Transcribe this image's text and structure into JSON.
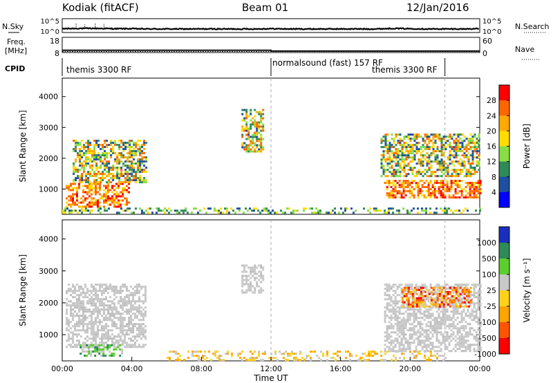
{
  "header": {
    "station": "Kodiak (fitACF)",
    "beam": "Beam 01",
    "date": "12/Jan/2016"
  },
  "chart_data": [
    {
      "type": "line",
      "name": "noise-panel",
      "ylabel_left": "N.Sky",
      "ylabel_right": "N.Search",
      "yticks_left": [
        "10^5",
        "10^0"
      ],
      "yticks_right": [
        "10^5",
        "10^0"
      ],
      "series": [
        {
          "name": "N.Sky",
          "style": "solid",
          "x": [
            0,
            1,
            2,
            3,
            4,
            5,
            6,
            7,
            8,
            9,
            10,
            11,
            12,
            13,
            14,
            15,
            16,
            17,
            18,
            19,
            20,
            21,
            22,
            23,
            24
          ],
          "y": [
            1.2,
            1.3,
            1.3,
            1.2,
            1.2,
            1.1,
            1.1,
            1.1,
            1.1,
            1.1,
            1.1,
            1.1,
            1.2,
            1.1,
            1.1,
            1.1,
            1.1,
            1.1,
            1.1,
            1.3,
            1.2,
            1.1,
            1.1,
            1.1,
            1.2
          ]
        },
        {
          "name": "N.Search",
          "style": "dotted",
          "x": [
            0.2,
            0.8,
            1.3,
            1.9,
            2.4,
            10.6
          ],
          "y": [
            2.2,
            3.4,
            3.0,
            3.5,
            3.1,
            2.2
          ]
        }
      ]
    },
    {
      "type": "line",
      "name": "freq-panel",
      "ylabel_left": [
        "Freq.",
        "[MHz]"
      ],
      "ylabel_right": "Nave",
      "yticks_left": [
        "18",
        "8"
      ],
      "yticks_right": [
        "60",
        "0"
      ],
      "series": [
        {
          "name": "Freq",
          "style": "solid",
          "x": [
            0,
            12,
            12,
            24
          ],
          "y": [
            9.5,
            9.5,
            9.0,
            9.0
          ]
        },
        {
          "name": "Nave",
          "style": "dotted",
          "x": [
            0,
            24
          ],
          "y": [
            3,
            3
          ]
        }
      ]
    },
    {
      "type": "table",
      "name": "cpid-strip",
      "label": "CPID",
      "segments": [
        {
          "text": "themis 3300 RF",
          "start": 0.0,
          "end": 12.0
        },
        {
          "text": "normalsound (fast) 157 RF",
          "start": 12.0,
          "end": 22.0
        },
        {
          "text": "themis 3300 RF",
          "start": 18.8,
          "end": 22.0
        }
      ],
      "boundaries_hours": [
        12.0,
        22.0
      ]
    },
    {
      "type": "heatmap",
      "name": "power-panel",
      "ylabel": "Slant Range [km]",
      "yticks": [
        1000,
        2000,
        3000,
        4000
      ],
      "ylim": [
        180,
        4600
      ],
      "xlim_hours": [
        0,
        24
      ],
      "colorbar": {
        "label": "Power [dB]",
        "ticks": [
          "28",
          "24",
          "20",
          "16",
          "12",
          "8",
          "4"
        ],
        "colors": [
          "#ff0000",
          "#ff6600",
          "#ffaa00",
          "#ffdd00",
          "#88dd44",
          "#2e8b57",
          "#1f4fa0",
          "#0000ff"
        ]
      },
      "echo_regions": [
        {
          "t0": 0.2,
          "t1": 3.8,
          "r0": 400,
          "r1": 1200,
          "level": "high"
        },
        {
          "t0": 0.6,
          "t1": 4.8,
          "r0": 1200,
          "r1": 2600,
          "level": "mid"
        },
        {
          "t0": 10.3,
          "t1": 11.6,
          "r0": 2200,
          "r1": 3600,
          "level": "mid"
        },
        {
          "t0": 18.5,
          "t1": 24.0,
          "r0": 700,
          "r1": 1300,
          "level": "high"
        },
        {
          "t0": 18.3,
          "t1": 24.0,
          "r0": 1400,
          "r1": 2800,
          "level": "mid"
        },
        {
          "t0": 0.0,
          "t1": 24.0,
          "r0": 200,
          "r1": 400,
          "level": "low"
        }
      ]
    },
    {
      "type": "heatmap",
      "name": "velocity-panel",
      "ylabel": "Slant Range [km]",
      "yticks": [
        1000,
        2000,
        3000,
        4000
      ],
      "ylim": [
        180,
        4600
      ],
      "xlim_hours": [
        0,
        24
      ],
      "xlabel": "Time UT",
      "xticks": [
        "00:00",
        "04:00",
        "08:00",
        "12:00",
        "16:00",
        "20:00",
        "00:00"
      ],
      "colorbar": {
        "label": "Velocity [m s⁻¹]",
        "ticks": [
          "1000",
          "500",
          "100",
          "25",
          "-25",
          "-100",
          "-500",
          "-1000"
        ],
        "colors": [
          "#1a2fbf",
          "#2e8b57",
          "#5ccf2e",
          "#c8c8c8",
          "#ffd21a",
          "#ffa500",
          "#ff5500",
          "#ff0000"
        ]
      },
      "echo_regions": [
        {
          "t0": 0.2,
          "t1": 4.8,
          "r0": 600,
          "r1": 2600,
          "level": "ground"
        },
        {
          "t0": 1.0,
          "t1": 3.5,
          "r0": 350,
          "r1": 700,
          "level": "positive"
        },
        {
          "t0": 10.3,
          "t1": 11.6,
          "r0": 2300,
          "r1": 3200,
          "level": "ground"
        },
        {
          "t0": 18.5,
          "t1": 24.0,
          "r0": 500,
          "r1": 2600,
          "level": "ground"
        },
        {
          "t0": 19.5,
          "t1": 23.5,
          "r0": 1900,
          "r1": 2500,
          "level": "negative"
        },
        {
          "t0": 6.0,
          "t1": 22.0,
          "r0": 200,
          "r1": 500,
          "level": "weak-negative"
        }
      ]
    }
  ]
}
